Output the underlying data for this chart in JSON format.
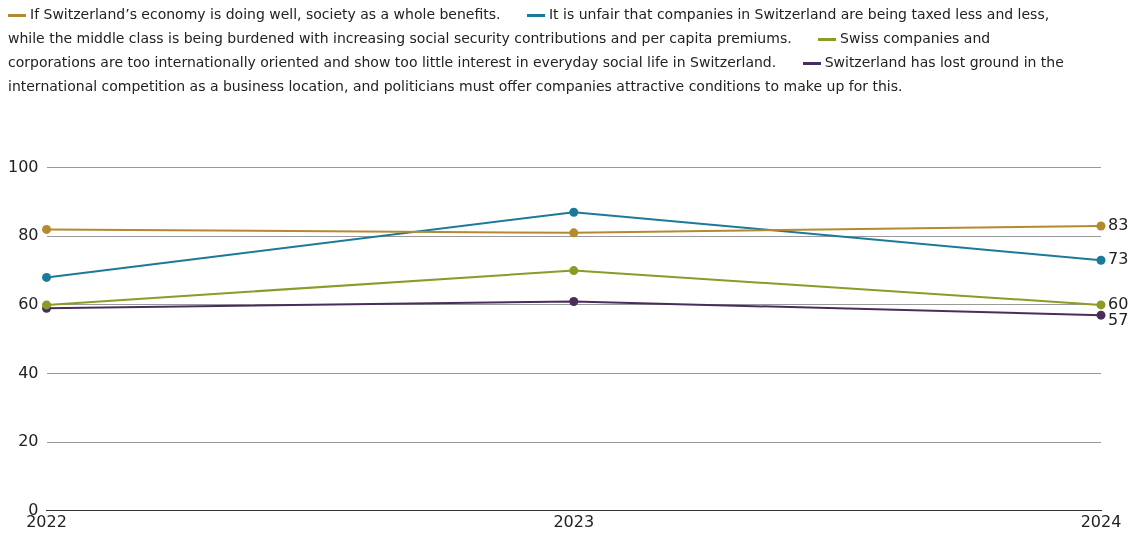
{
  "chart_data": {
    "type": "line",
    "categories": [
      "2022",
      "2023",
      "2024"
    ],
    "series": [
      {
        "name": "If Switzerland’s economy is doing well, society as a whole benefits.",
        "color": "#b5892f",
        "values": [
          82,
          81,
          83
        ],
        "value_labels": [
          null,
          null,
          "83"
        ]
      },
      {
        "name": "It is unfair that companies in Switzerland are being taxed less and less, while the middle class is being burdened with increasing social security contributions and per capita premiums.",
        "color": "#1b7a9a",
        "values": [
          68,
          87,
          73
        ],
        "value_labels": [
          null,
          null,
          "73"
        ]
      },
      {
        "name": "Swiss  companies and corporations are too internationally oriented and show too little interest in everyday social life in Switzerland.",
        "color": "#8c9a27",
        "values": [
          60,
          70,
          60
        ],
        "value_labels": [
          null,
          null,
          "60"
        ]
      },
      {
        "name": "Switzerland  has lost ground in the international competition as a business location, and politicians must offer companies attractive conditions to make up for this.",
        "color": "#4b2d5a",
        "values": [
          59,
          61,
          57
        ],
        "value_labels": [
          null,
          null,
          "57"
        ]
      }
    ],
    "ylim": [
      0,
      100
    ],
    "yticks": [
      0,
      20,
      40,
      60,
      80,
      100
    ],
    "grid": "y",
    "legend": "top",
    "marker": "circle",
    "line_style": "solid"
  }
}
